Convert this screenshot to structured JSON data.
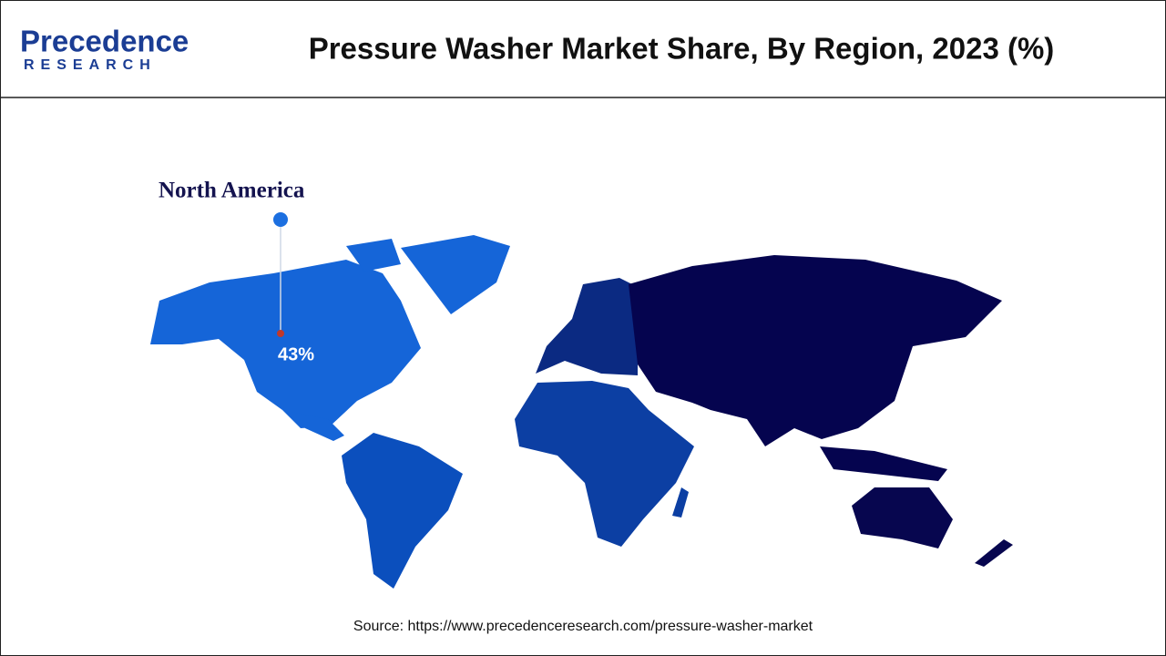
{
  "header": {
    "logo_top": "Precedence",
    "logo_bottom": "RESEARCH",
    "title": "Pressure Washer Market Share, By Region, 2023 (%)"
  },
  "map": {
    "regions": [
      {
        "name": "North America",
        "value": 43,
        "value_label": "43%"
      }
    ]
  },
  "source": "Source: https://www.precedenceresearch.com/pressure-washer-market"
}
